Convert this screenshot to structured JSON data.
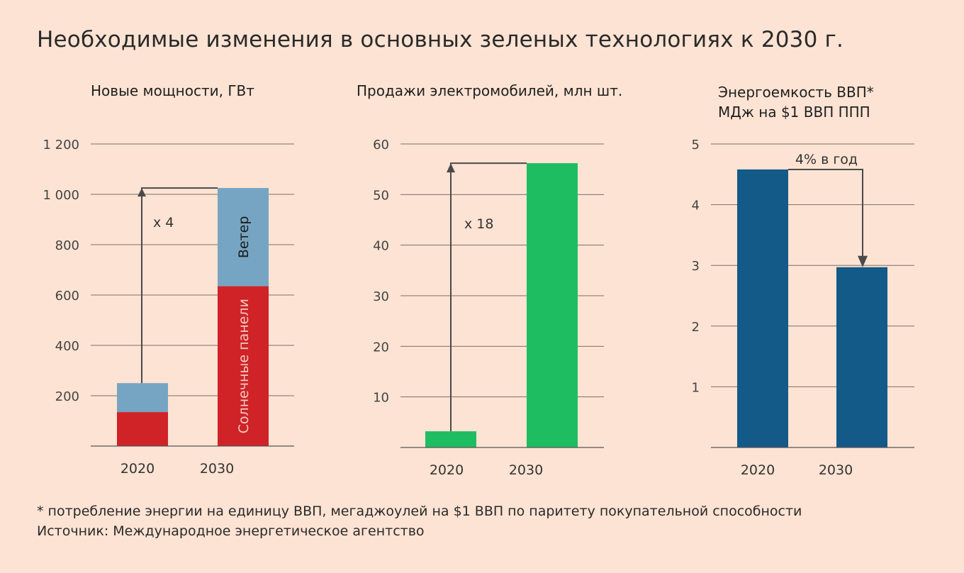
{
  "title": "Необходимые изменения в основных зеленых технологиях к 2030 г.",
  "footnote": "* потребление энергии на единицу ВВП, мегаджоулей на $1 ВВП по паритету покупательной способности",
  "source": "Источник: Международное энергетическое агентство",
  "colors": {
    "background": "#fde3d3",
    "solar": "#cf2327",
    "wind": "#76a5c3",
    "ev": "#1fbd61",
    "energy": "#135a88",
    "grid": "#7a6f6a",
    "arrow": "#4a4a4a"
  },
  "chart_data": [
    {
      "type": "bar",
      "stacked": true,
      "title": "Новые мощности, ГВт",
      "categories": [
        "2020",
        "2030"
      ],
      "series": [
        {
          "name": "Солнечные панели",
          "values": [
            135,
            635
          ]
        },
        {
          "name": "Ветер",
          "values": [
            115,
            390
          ]
        }
      ],
      "ylim": [
        0,
        1200
      ],
      "yticks": [
        200,
        400,
        600,
        800,
        1000,
        1200
      ],
      "ytick_labels": [
        "200",
        "400",
        "600",
        "800",
        "1 000",
        "1 200"
      ],
      "annotation": "x 4",
      "grid": true
    },
    {
      "type": "bar",
      "title": "Продажи электромобилей, млн шт.",
      "categories": [
        "2020",
        "2030"
      ],
      "values": [
        3.2,
        56.2
      ],
      "ylim": [
        0,
        60
      ],
      "yticks": [
        10,
        20,
        30,
        40,
        50,
        60
      ],
      "ytick_labels": [
        "10",
        "20",
        "30",
        "40",
        "50",
        "60"
      ],
      "annotation": "x 18",
      "grid": true
    },
    {
      "type": "bar",
      "title_lines": [
        "Энергоемкость ВВП*",
        "МДж на $1 ВВП ППП"
      ],
      "categories": [
        "2020",
        "2030"
      ],
      "values": [
        4.58,
        2.97
      ],
      "ylim": [
        0,
        5
      ],
      "yticks": [
        1,
        2,
        3,
        4,
        5
      ],
      "ytick_labels": [
        "1",
        "2",
        "3",
        "4",
        "5"
      ],
      "annotation": "4% в год",
      "grid": true
    }
  ]
}
